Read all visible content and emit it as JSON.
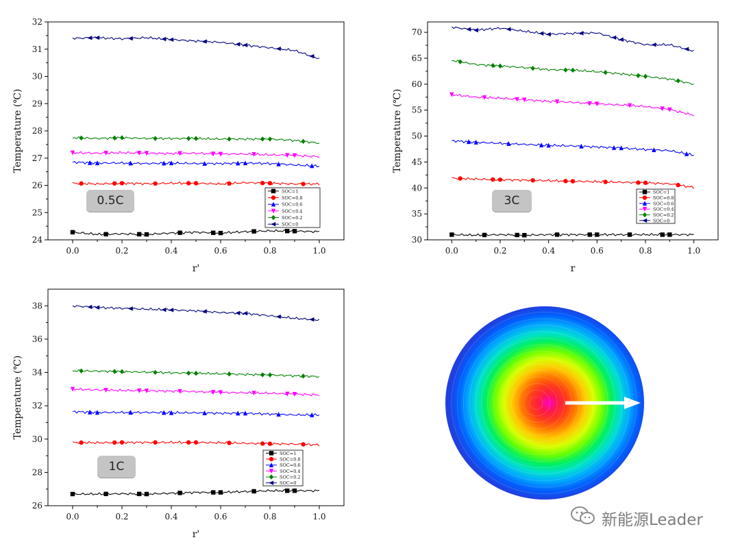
{
  "charts": [
    {
      "type": "line",
      "badge": "0.5C",
      "xlabel": "r'",
      "ylabel": "Temperature (℃)",
      "xlim": [
        -0.1,
        1.1
      ],
      "ylim": [
        24,
        32
      ],
      "xticks": [
        0.0,
        0.2,
        0.4,
        0.6,
        0.8,
        1.0
      ],
      "yticks": [
        24,
        25,
        26,
        27,
        28,
        29,
        30,
        31,
        32
      ],
      "legend_position": "bottom-right",
      "series": [
        {
          "name": "SOC=1",
          "color": "#000000",
          "marker": "square",
          "x": [
            0,
            0.1,
            0.2,
            0.3,
            0.4,
            0.5,
            0.6,
            0.7,
            0.8,
            0.9,
            1.0
          ],
          "y": [
            24.28,
            24.2,
            24.22,
            24.2,
            24.25,
            24.28,
            24.25,
            24.3,
            24.33,
            24.32,
            24.3
          ]
        },
        {
          "name": "SOC=0.8",
          "color": "#ff0000",
          "marker": "circle",
          "x": [
            0,
            0.1,
            0.2,
            0.3,
            0.4,
            0.5,
            0.6,
            0.7,
            0.8,
            0.9,
            1.0
          ],
          "y": [
            26.08,
            26.05,
            26.08,
            26.06,
            26.08,
            26.08,
            26.05,
            26.1,
            26.08,
            26.05,
            26.05
          ]
        },
        {
          "name": "SOC=0.6",
          "color": "#0000ff",
          "marker": "triangle-up",
          "x": [
            0,
            0.1,
            0.2,
            0.3,
            0.4,
            0.5,
            0.6,
            0.7,
            0.8,
            0.9,
            1.0
          ],
          "y": [
            26.85,
            26.82,
            26.82,
            26.8,
            26.82,
            26.8,
            26.8,
            26.82,
            26.8,
            26.75,
            26.7
          ]
        },
        {
          "name": "SOC=0.4",
          "color": "#ff00ff",
          "marker": "triangle-down",
          "x": [
            0,
            0.1,
            0.2,
            0.3,
            0.4,
            0.5,
            0.6,
            0.7,
            0.8,
            0.9,
            1.0
          ],
          "y": [
            27.2,
            27.18,
            27.2,
            27.18,
            27.17,
            27.18,
            27.15,
            27.15,
            27.12,
            27.1,
            27.05
          ]
        },
        {
          "name": "SOC=0.2",
          "color": "#008000",
          "marker": "diamond",
          "x": [
            0,
            0.1,
            0.2,
            0.3,
            0.4,
            0.5,
            0.6,
            0.7,
            0.8,
            0.9,
            1.0
          ],
          "y": [
            27.75,
            27.72,
            27.75,
            27.72,
            27.72,
            27.72,
            27.7,
            27.7,
            27.7,
            27.65,
            27.55
          ]
        },
        {
          "name": "SOC=0",
          "color": "#000080",
          "marker": "triangle-left",
          "x": [
            0,
            0.1,
            0.2,
            0.3,
            0.4,
            0.5,
            0.6,
            0.7,
            0.8,
            0.9,
            1.0
          ],
          "y": [
            31.4,
            31.42,
            31.38,
            31.42,
            31.35,
            31.3,
            31.25,
            31.15,
            31.05,
            30.95,
            30.65
          ]
        }
      ]
    },
    {
      "type": "line",
      "badge": "3C",
      "xlabel": "r",
      "ylabel": "Temperature (℃)",
      "xlim": [
        -0.1,
        1.1
      ],
      "ylim": [
        30,
        72
      ],
      "xticks": [
        0.0,
        0.2,
        0.4,
        0.6,
        0.8,
        1.0
      ],
      "yticks": [
        30,
        35,
        40,
        45,
        50,
        55,
        60,
        65,
        70
      ],
      "legend_position": "bottom-right",
      "series": [
        {
          "name": "SOC=1",
          "color": "#000000",
          "marker": "square",
          "x": [
            0,
            0.1,
            0.2,
            0.3,
            0.4,
            0.5,
            0.6,
            0.7,
            0.8,
            0.9,
            1.0
          ],
          "y": [
            31.0,
            30.9,
            31.0,
            30.9,
            31.0,
            31.0,
            31.0,
            31.0,
            31.0,
            31.0,
            31.0
          ]
        },
        {
          "name": "SOC=0.8",
          "color": "#ff0000",
          "marker": "circle",
          "x": [
            0,
            0.1,
            0.2,
            0.3,
            0.4,
            0.5,
            0.6,
            0.7,
            0.8,
            0.9,
            1.0
          ],
          "y": [
            41.9,
            41.7,
            41.6,
            41.5,
            41.4,
            41.3,
            41.2,
            41.1,
            41.0,
            40.8,
            40.1
          ]
        },
        {
          "name": "SOC=0.6",
          "color": "#0000ff",
          "marker": "triangle-up",
          "x": [
            0,
            0.1,
            0.2,
            0.3,
            0.4,
            0.5,
            0.6,
            0.7,
            0.8,
            0.9,
            1.0
          ],
          "y": [
            49.1,
            48.8,
            48.6,
            48.4,
            48.2,
            48.1,
            47.9,
            47.7,
            47.4,
            47.2,
            46.3
          ]
        },
        {
          "name": "SOC=0.4",
          "color": "#ff00ff",
          "marker": "triangle-down",
          "x": [
            0,
            0.1,
            0.2,
            0.3,
            0.4,
            0.5,
            0.6,
            0.7,
            0.8,
            0.9,
            1.0
          ],
          "y": [
            58.0,
            57.5,
            57.3,
            57.0,
            56.7,
            56.5,
            56.2,
            56.0,
            55.7,
            55.1,
            54.0
          ]
        },
        {
          "name": "SOC=0.2",
          "color": "#008000",
          "marker": "diamond",
          "x": [
            0,
            0.1,
            0.2,
            0.3,
            0.4,
            0.5,
            0.6,
            0.7,
            0.8,
            0.9,
            1.0
          ],
          "y": [
            64.6,
            63.8,
            63.5,
            63.2,
            62.8,
            62.7,
            62.4,
            62.0,
            61.5,
            61.0,
            60.0
          ]
        },
        {
          "name": "SOC=0",
          "color": "#000080",
          "marker": "triangle-left",
          "x": [
            0,
            0.1,
            0.2,
            0.3,
            0.4,
            0.5,
            0.6,
            0.7,
            0.8,
            0.9,
            1.0
          ],
          "y": [
            71.0,
            70.4,
            70.8,
            70.2,
            69.6,
            69.8,
            69.9,
            68.6,
            67.6,
            67.6,
            66.4
          ]
        }
      ]
    },
    {
      "type": "line",
      "badge": "1C",
      "xlabel": "r'",
      "ylabel": "Temperature (℃)",
      "xlim": [
        -0.1,
        1.1
      ],
      "ylim": [
        26,
        39
      ],
      "xticks": [
        0.0,
        0.2,
        0.4,
        0.6,
        0.8,
        1.0
      ],
      "yticks": [
        26,
        28,
        30,
        32,
        34,
        36,
        38
      ],
      "legend_position": "bottom-right",
      "series": [
        {
          "name": "SOC=1",
          "color": "#000000",
          "marker": "square",
          "x": [
            0,
            0.1,
            0.2,
            0.3,
            0.4,
            0.5,
            0.6,
            0.7,
            0.8,
            0.9,
            1.0
          ],
          "y": [
            26.7,
            26.7,
            26.72,
            26.7,
            26.75,
            26.8,
            26.8,
            26.85,
            26.9,
            26.9,
            26.9
          ]
        },
        {
          "name": "SOC=0.8",
          "color": "#ff0000",
          "marker": "circle",
          "x": [
            0,
            0.1,
            0.2,
            0.3,
            0.4,
            0.5,
            0.6,
            0.7,
            0.8,
            0.9,
            1.0
          ],
          "y": [
            29.8,
            29.78,
            29.8,
            29.8,
            29.8,
            29.8,
            29.78,
            29.75,
            29.72,
            29.7,
            29.65
          ]
        },
        {
          "name": "SOC=0.6",
          "color": "#0000ff",
          "marker": "triangle-up",
          "x": [
            0,
            0.1,
            0.2,
            0.3,
            0.4,
            0.5,
            0.6,
            0.7,
            0.8,
            0.9,
            1.0
          ],
          "y": [
            31.65,
            31.6,
            31.6,
            31.6,
            31.58,
            31.58,
            31.55,
            31.55,
            31.5,
            31.45,
            31.45
          ]
        },
        {
          "name": "SOC=0.4",
          "color": "#ff00ff",
          "marker": "triangle-down",
          "x": [
            0,
            0.1,
            0.2,
            0.3,
            0.4,
            0.5,
            0.6,
            0.7,
            0.8,
            0.9,
            1.0
          ],
          "y": [
            33.0,
            32.95,
            32.92,
            32.9,
            32.88,
            32.85,
            32.8,
            32.78,
            32.75,
            32.7,
            32.65
          ]
        },
        {
          "name": "SOC=0.2",
          "color": "#008000",
          "marker": "diamond",
          "x": [
            0,
            0.1,
            0.2,
            0.3,
            0.4,
            0.5,
            0.6,
            0.7,
            0.8,
            0.9,
            1.0
          ],
          "y": [
            34.1,
            34.08,
            34.05,
            34.02,
            33.98,
            33.95,
            33.92,
            33.88,
            33.85,
            33.8,
            33.75
          ]
        },
        {
          "name": "SOC=0",
          "color": "#000080",
          "marker": "triangle-left",
          "x": [
            0,
            0.1,
            0.2,
            0.3,
            0.4,
            0.5,
            0.6,
            0.7,
            0.8,
            0.9,
            1.0
          ],
          "y": [
            38.0,
            37.9,
            37.85,
            37.8,
            37.75,
            37.7,
            37.6,
            37.55,
            37.4,
            37.25,
            37.15
          ]
        }
      ]
    }
  ],
  "legend_labels": {
    "panel_05C": [
      "SOC=1",
      "SOC=0.8",
      "SOC=0.6",
      "SOC=0.4",
      "SOC=0.2",
      "SOC=0"
    ],
    "panel_3C": [
      "SOC=1",
      "SOC=0.8",
      "SOC=0.6",
      "SOC=0.4",
      "SOC=0.2",
      "SOC=0"
    ],
    "panel_1C": [
      "SOC=1",
      "SOC=0.8",
      "SOC=0.6",
      "SOC=0.4",
      "SOC=0.2",
      "SOC=0"
    ]
  },
  "contour": {
    "colors": [
      "#ff00c8",
      "#ff1a4a",
      "#ff3a1a",
      "#ff7a00",
      "#ffc800",
      "#d8ff00",
      "#6cff00",
      "#00f060",
      "#00e0d0",
      "#00a8ff",
      "#0060ff",
      "#2040e0"
    ],
    "arrow_color": "#ffffff"
  },
  "watermark": {
    "text": "新能源Leader",
    "icon": "wechat-icon"
  }
}
